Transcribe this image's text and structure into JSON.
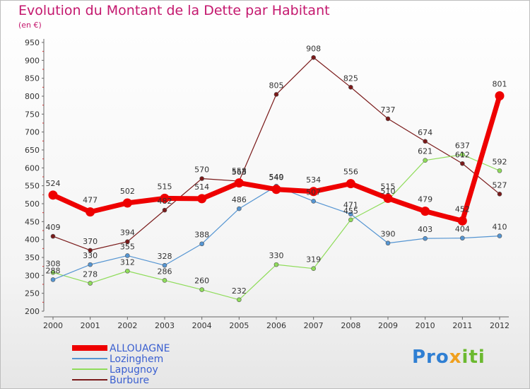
{
  "header": {
    "title": "Evolution du Montant de la Dette par Habitant",
    "subtitle": "(en €)"
  },
  "logo": {
    "part1": "Pro",
    "part2": "x",
    "part3": "iti"
  },
  "chart_data": {
    "type": "line",
    "x": [
      "2000",
      "2001",
      "2002",
      "2003",
      "2004",
      "2005",
      "2006",
      "2007",
      "2008",
      "2009",
      "2010",
      "2011",
      "2012"
    ],
    "ylim": [
      200,
      950
    ],
    "yticks": [
      200,
      250,
      300,
      350,
      400,
      450,
      500,
      550,
      600,
      650,
      700,
      750,
      800,
      850,
      900,
      950
    ],
    "grid": false,
    "legend": "bottom-left",
    "series": [
      {
        "name": "Burbure",
        "color": "#7a1a1a",
        "width": 1.2,
        "values": [
          409,
          370,
          394,
          482,
          570,
          563,
          805,
          908,
          825,
          737,
          674,
          612,
          527
        ]
      },
      {
        "name": "Lapugnoy",
        "color": "#8fdc5a",
        "width": 1.2,
        "values": [
          308,
          278,
          312,
          286,
          260,
          232,
          330,
          319,
          455,
          510,
          621,
          637,
          592
        ]
      },
      {
        "name": "Lozinghem",
        "color": "#5595d2",
        "width": 1.2,
        "values": [
          288,
          330,
          355,
          328,
          388,
          486,
          549,
          507,
          471,
          390,
          403,
          404,
          410
        ]
      },
      {
        "name": "ALLOUAGNE",
        "color": "#ee0000",
        "width": 7,
        "values": [
          524,
          477,
          502,
          515,
          514,
          558,
          540,
          534,
          556,
          515,
          479,
          452,
          801
        ]
      }
    ]
  }
}
